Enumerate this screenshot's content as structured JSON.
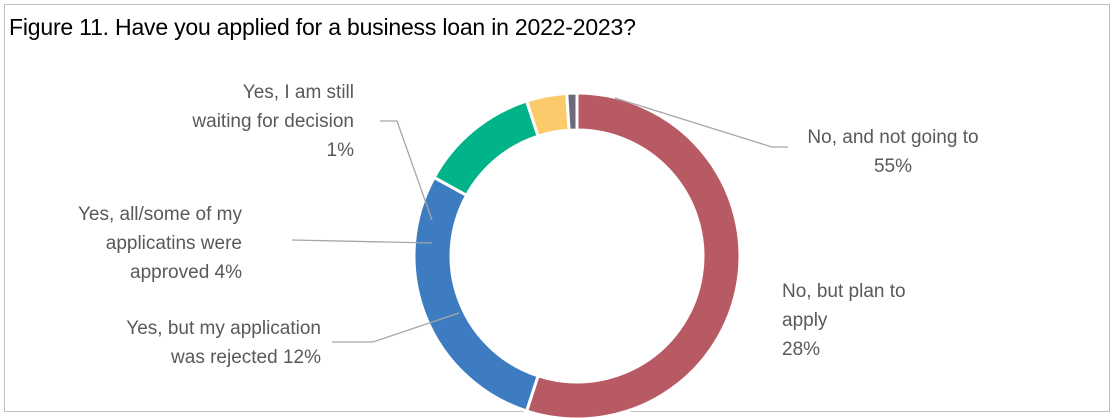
{
  "title": "Figure 11. Have you applied for a business loan in 2022-2023?",
  "chart_data": {
    "type": "pie",
    "variant": "doughnut",
    "legend": "none",
    "slices": [
      {
        "name": "No, and not going to",
        "value": 55,
        "color": "#b85a63",
        "label_lines": [
          "No, and not going to",
          "55%"
        ]
      },
      {
        "name": "No, but plan to apply",
        "value": 28,
        "color": "#3e7cc1",
        "label_lines": [
          "No, but plan to",
          "apply",
          "28%"
        ]
      },
      {
        "name": "Yes, but my application was rejected",
        "value": 12,
        "color": "#00b388",
        "label_lines": [
          "Yes, but my application",
          "was rejected 12%"
        ]
      },
      {
        "name": "Yes, all/some of my applicatins were approved",
        "value": 4,
        "color": "#fbcb6b",
        "label_lines": [
          "Yes, all/some of my",
          "applicatins were",
          "approved 4%"
        ]
      },
      {
        "name": "Yes, I am still waiting for decision",
        "value": 1,
        "color": "#6b6b7b",
        "label_lines": [
          "Yes, I am still",
          "waiting for decision",
          "1%"
        ]
      }
    ]
  }
}
